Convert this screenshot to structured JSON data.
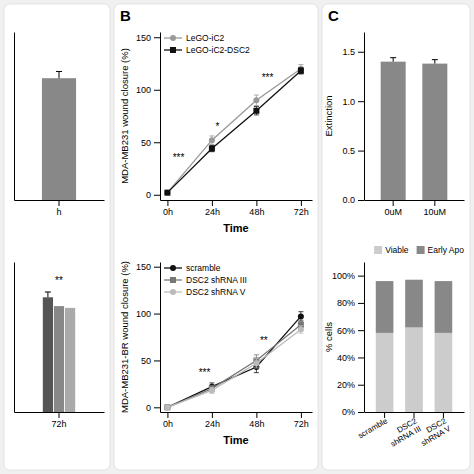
{
  "chart_data": [
    {
      "type": "bar",
      "categories": [
        "h"
      ],
      "series": [
        {
          "color": "#888888",
          "values": [
            145
          ],
          "errors_upper": [
            8
          ]
        }
      ],
      "ylim": [
        0,
        200
      ],
      "yticks": [],
      "tick_labels": "x"
    },
    {
      "type": "bar",
      "categories": [
        "72h"
      ],
      "series": [
        {
          "color": "#555555",
          "values": [
            130
          ],
          "errors_upper": [
            6
          ]
        },
        {
          "color": "#888888",
          "values": [
            120
          ]
        },
        {
          "color": "#aaaaaa",
          "values": [
            118
          ]
        }
      ],
      "ylim": [
        0,
        170
      ],
      "yticks": [],
      "tick_labels": "x",
      "annotations": [
        {
          "text": "**",
          "x": "72h",
          "y": 145
        }
      ]
    },
    {
      "type": "line",
      "title": "B",
      "xlabel": "Time",
      "ylabel": "MDA-MB231 wound closure (%)",
      "x": [
        0,
        24,
        48,
        72
      ],
      "xlim": [
        -4,
        78
      ],
      "xticks": [
        {
          "value": 0,
          "label": "0h"
        },
        {
          "value": 24,
          "label": "24h"
        },
        {
          "value": 48,
          "label": "48h"
        },
        {
          "value": 72,
          "label": "72h"
        }
      ],
      "ylim": [
        -5,
        155
      ],
      "yticks": [
        0,
        50,
        100,
        150
      ],
      "legend": "upper left",
      "series": [
        {
          "name": "LeGO-iC2",
          "color": "#999999",
          "marker": "circle",
          "line_style": "solid",
          "values": [
            2,
            52,
            90,
            120
          ],
          "errors": [
            1,
            4,
            5,
            4
          ]
        },
        {
          "name": "LeGO-iC2-DSC2",
          "color": "#111111",
          "marker": "square",
          "line_style": "solid",
          "values": [
            2,
            44,
            80,
            118
          ],
          "errors": [
            1,
            3,
            4,
            3
          ]
        }
      ],
      "annotations": [
        {
          "text": "***",
          "x": 6,
          "y": 32
        },
        {
          "text": "*",
          "x": 27,
          "y": 62
        },
        {
          "text": "***",
          "x": 54,
          "y": 108
        }
      ]
    },
    {
      "type": "line",
      "xlabel": "Time",
      "ylabel": "MDA-MB231-BR wound closure (%)",
      "x": [
        0,
        24,
        48,
        72
      ],
      "xlim": [
        -4,
        78
      ],
      "xticks": [
        {
          "value": 0,
          "label": "0h"
        },
        {
          "value": 24,
          "label": "24h"
        },
        {
          "value": 48,
          "label": "48h"
        },
        {
          "value": 72,
          "label": "72h"
        }
      ],
      "ylim": [
        -5,
        155
      ],
      "yticks": [
        0,
        50,
        100,
        150
      ],
      "legend": "upper left",
      "series": [
        {
          "name": "scramble",
          "color": "#111111",
          "marker": "circle",
          "line_style": "solid",
          "values": [
            0,
            22,
            43,
            97
          ],
          "errors": [
            0.5,
            4,
            6,
            5
          ]
        },
        {
          "name": "DSC2 shRNA III",
          "color": "#777777",
          "marker": "square",
          "line_style": "solid",
          "values": [
            0,
            20,
            50,
            88
          ],
          "errors": [
            0.5,
            3,
            6,
            5
          ]
        },
        {
          "name": "DSC2 shRNA V",
          "color": "#bbbbbb",
          "marker": "circle",
          "line_style": "solid",
          "values": [
            0,
            18,
            47,
            83
          ],
          "errors": [
            0.5,
            3,
            5,
            4
          ]
        }
      ],
      "annotations": [
        {
          "text": "***",
          "x": 20,
          "y": 33
        },
        {
          "text": "**",
          "x": 52,
          "y": 68
        }
      ]
    },
    {
      "type": "bar",
      "title": "C",
      "ylabel": "Extinction",
      "categories": [
        "0uM",
        "10uM"
      ],
      "series": [
        {
          "color": "#888888",
          "values": [
            1.4,
            1.38
          ],
          "errors_upper": [
            0.04,
            0.04
          ]
        }
      ],
      "ylim": [
        0,
        1.7
      ],
      "yticks": [
        {
          "value": 0.0,
          "label": "0.0"
        },
        {
          "value": 0.5,
          "label": "0.5"
        },
        {
          "value": 1.0,
          "label": "1.0"
        },
        {
          "value": 1.5,
          "label": "1.5"
        }
      ]
    },
    {
      "type": "bar",
      "stacked": true,
      "ylabel": "% cells",
      "legend": "upper right",
      "categories": [
        "scramble",
        "DSC2\nshRNA III",
        "DSC2\nshRNA V"
      ],
      "series": [
        {
          "name": "Viable",
          "color": "#cccccc",
          "values": [
            58,
            62,
            58
          ]
        },
        {
          "name": "Early Apo",
          "color": "#888888",
          "values": [
            38,
            35,
            38
          ]
        }
      ],
      "ylim": [
        0,
        110
      ],
      "yticks": [
        {
          "value": 0,
          "label": "0%"
        },
        {
          "value": 20,
          "label": "20%"
        },
        {
          "value": 40,
          "label": "40%"
        },
        {
          "value": 60,
          "label": "60%"
        },
        {
          "value": 80,
          "label": "80%"
        },
        {
          "value": 100,
          "label": "100%"
        }
      ]
    }
  ]
}
